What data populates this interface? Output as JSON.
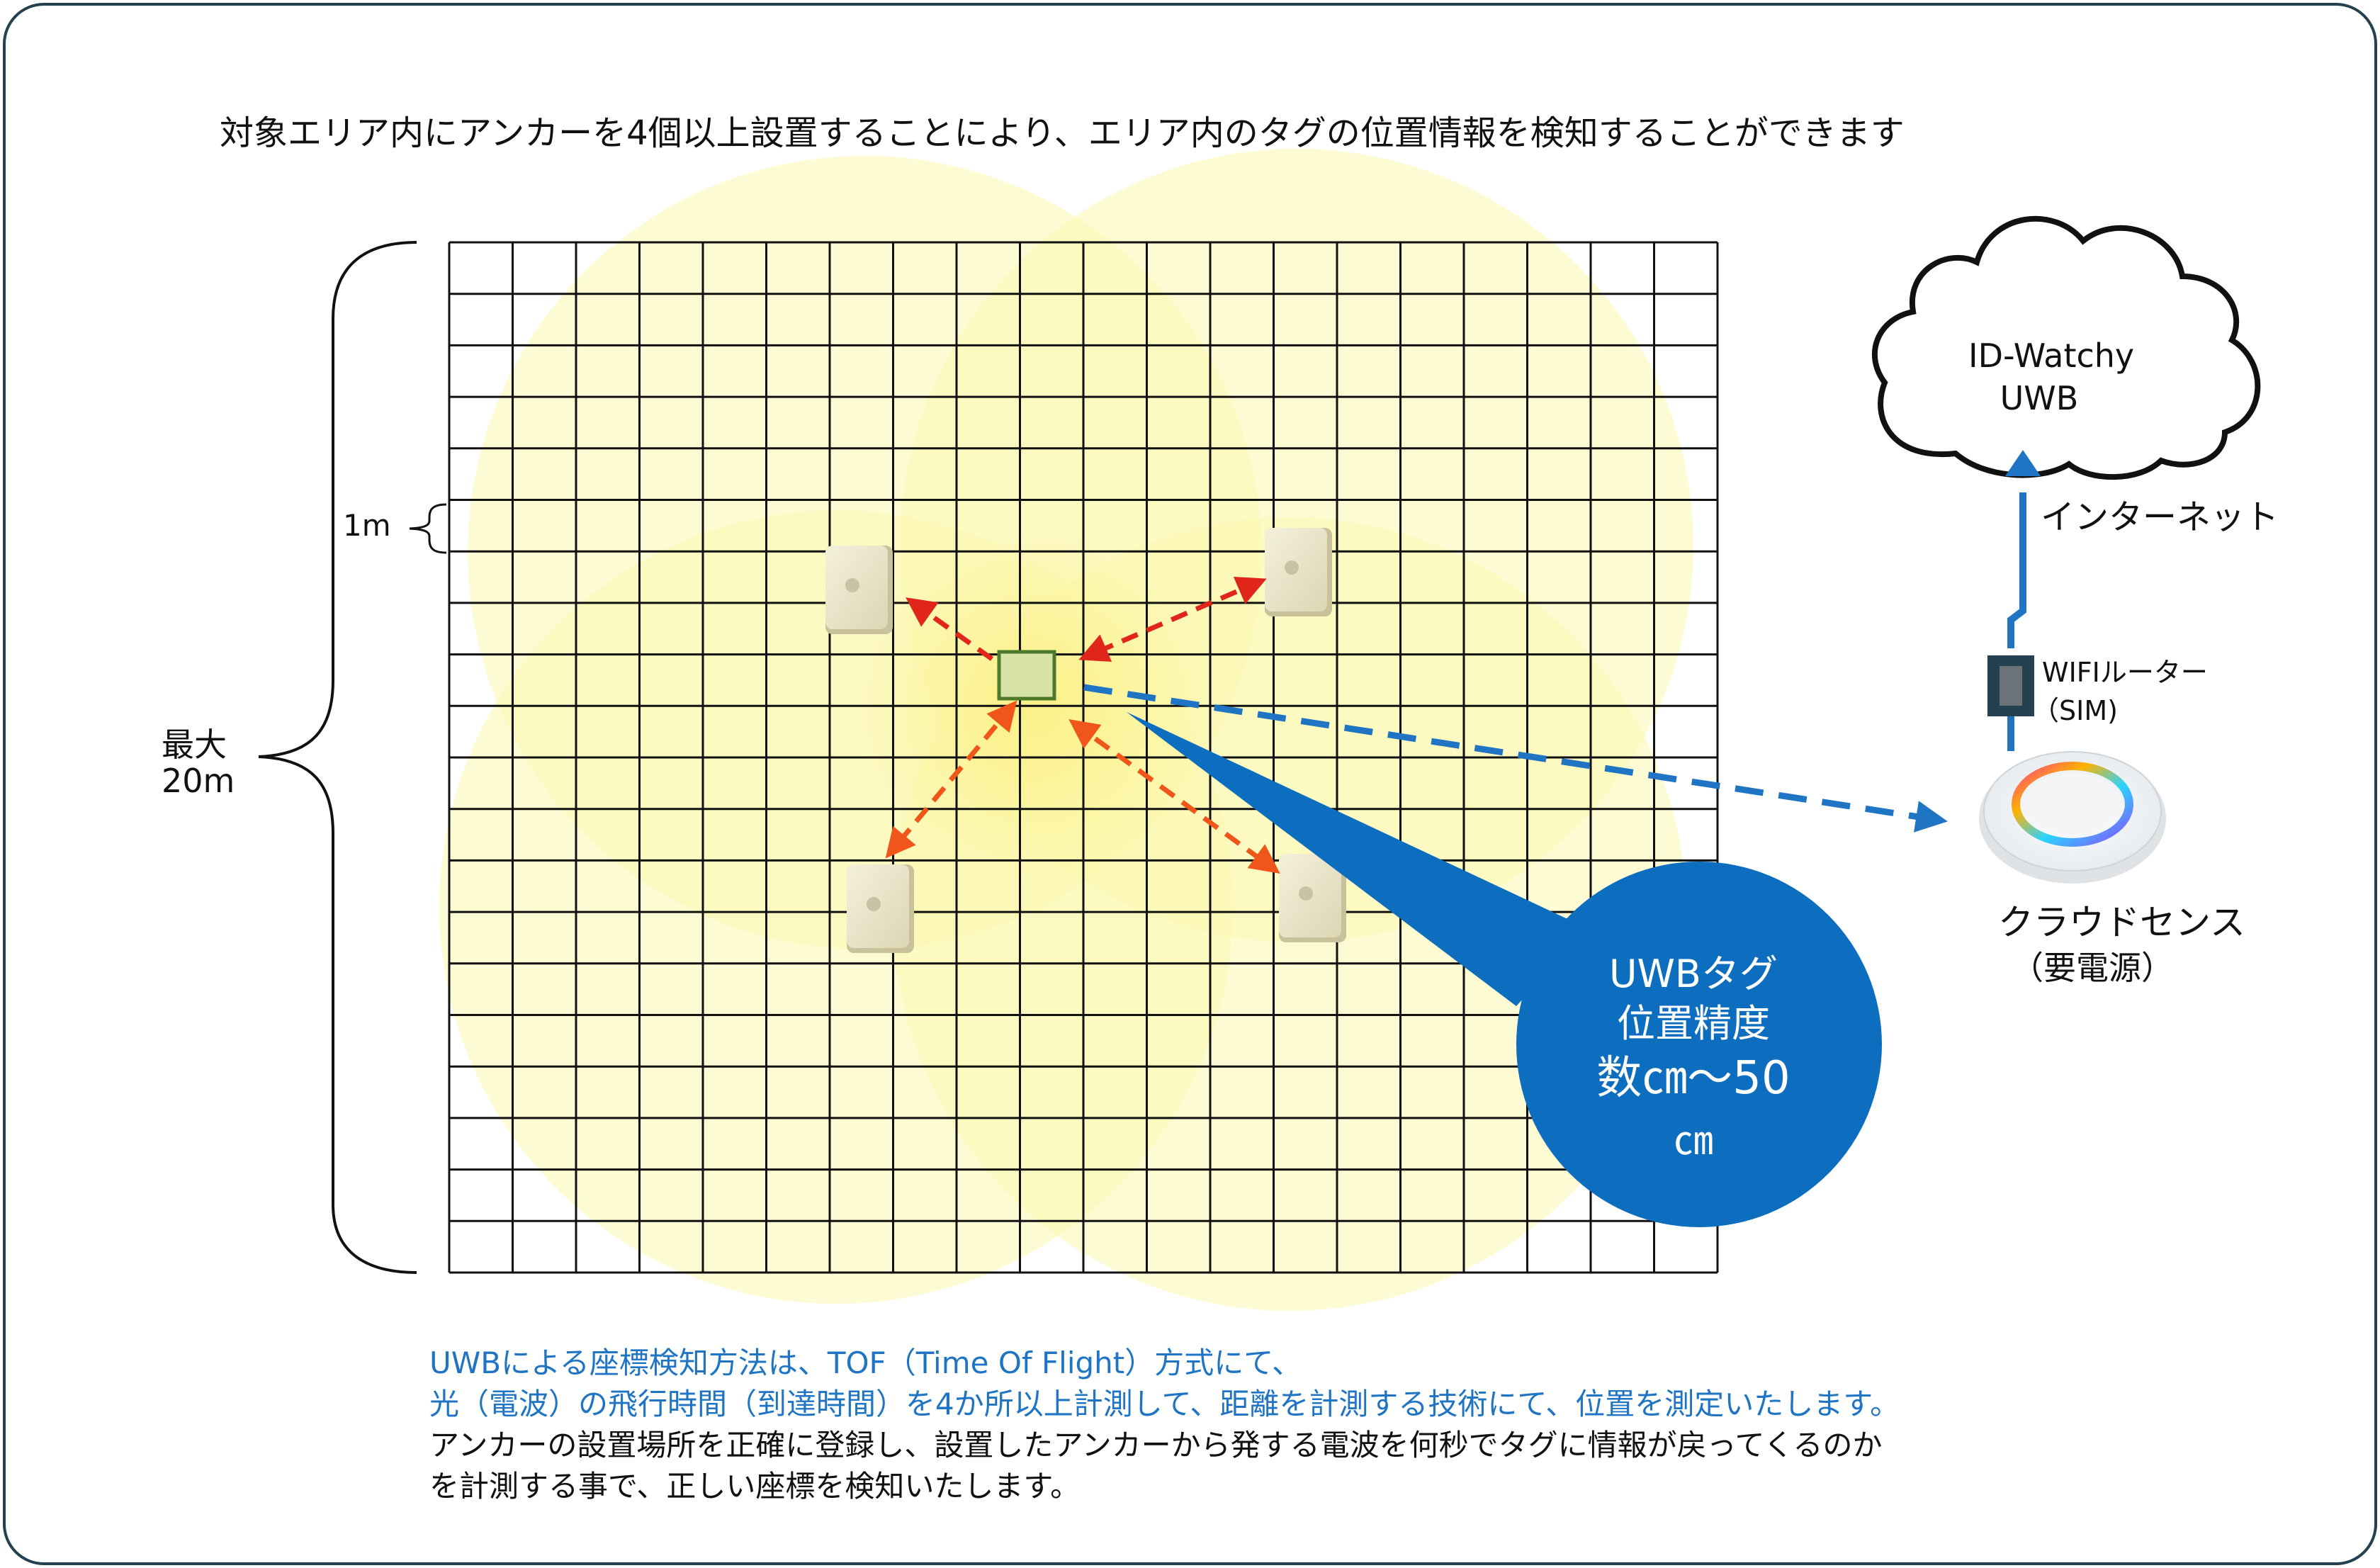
{
  "heading": "対象エリア内にアンカーを4個以上設置することにより、エリア内のタグの位置情報を検知することができます",
  "dimension": {
    "max_line1": "最大",
    "max_line2": "20m",
    "cell": "1m"
  },
  "cloud": {
    "line1": "ID-Watchy",
    "line2": "UWB"
  },
  "internet_label": "インターネット",
  "router": {
    "line1": "WIFIルーター",
    "line2": "（SIM)"
  },
  "sensor": {
    "line1": "クラウドセンス",
    "line2": "（要電源）"
  },
  "accuracy_bubble": {
    "line1": "UWBタグ",
    "line2": "位置精度",
    "line3": "数㎝～50",
    "line4": "㎝"
  },
  "description": {
    "line1": "UWBによる座標検知方法は、TOF（Time Of Flight）方式にて、",
    "line2": "光（電波）の飛行時間（到達時間）を4か所以上計測して、距離を計測する技術にて、位置を測定いたします。",
    "line3": "アンカーの設置場所を正確に登録し、設置したアンカーから発する電波を何秒でタグに情報が戻ってくるのか",
    "line4": "を計測する事で、正しい座標を検知いたします。"
  },
  "colors": {
    "frame": "#23414e",
    "coverage": "#fbf7b0",
    "arrow": "#f0561a",
    "link": "#1f74c3",
    "bubble": "#0d6dbf"
  },
  "icons": [
    "anchor-device-icon",
    "tag-icon",
    "cloud-icon",
    "router-icon",
    "cloud-sense-sensor-icon"
  ]
}
